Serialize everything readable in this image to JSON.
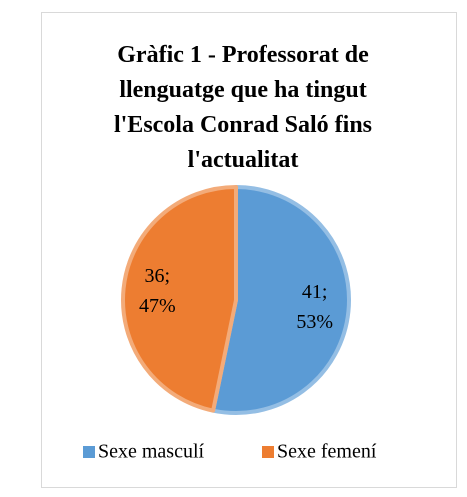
{
  "chart_data": {
    "type": "pie",
    "title": "Gràfic 1 - Professorat de llenguatge que ha tingut l'Escola Conrad Saló fins l'actualitat",
    "categories": [
      "Sexe masculí",
      "Sexe femení"
    ],
    "values": [
      41,
      36
    ],
    "value_labels": [
      "41; 53%",
      "36; 47%"
    ],
    "colors": [
      "#5b9bd5",
      "#ed7d31"
    ],
    "legend": "bottom"
  }
}
